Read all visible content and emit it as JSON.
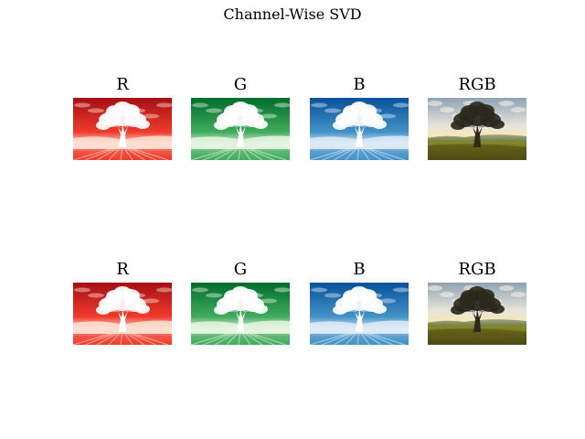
{
  "figure": {
    "title": "Channel-Wise SVD"
  },
  "rows": [
    {
      "panels": [
        {
          "title": "R",
          "channel": "red",
          "colormap": "Reds"
        },
        {
          "title": "G",
          "channel": "green",
          "colormap": "Greens"
        },
        {
          "title": "B",
          "channel": "blue",
          "colormap": "Blues"
        },
        {
          "title": "RGB",
          "channel": "rgb",
          "colormap": "none"
        }
      ]
    },
    {
      "panels": [
        {
          "title": "R",
          "channel": "red",
          "colormap": "Reds"
        },
        {
          "title": "G",
          "channel": "green",
          "colormap": "Greens"
        },
        {
          "title": "B",
          "channel": "blue",
          "colormap": "Blues"
        },
        {
          "title": "RGB",
          "channel": "rgb",
          "colormap": "none"
        }
      ]
    }
  ],
  "colors": {
    "reds_dark": "#a50f15",
    "reds_mid": "#ef3b2c",
    "reds_light": "#fee0d2",
    "greens_dark": "#006d2c",
    "greens_mid": "#41ab5d",
    "greens_light": "#e5f5e0",
    "blues_dark": "#08519c",
    "blues_mid": "#4292c6",
    "blues_light": "#deebf7",
    "sky": "#8fa3b5",
    "cloud": "#e8e4da",
    "horizon_glow": "#f6e7b8",
    "grass": "#8a8a24",
    "grass_dark": "#4d4a14",
    "tree": "#2b2a1c"
  }
}
